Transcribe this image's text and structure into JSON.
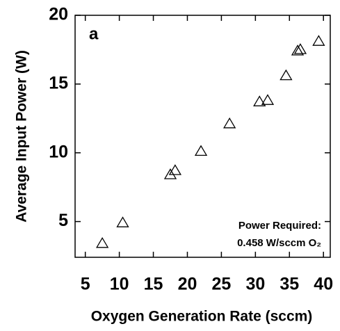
{
  "chart_data": {
    "type": "scatter",
    "panel_label": "a",
    "x_label": "Oxygen Generation Rate (sccm)",
    "y_label": "Average Input Power (W)",
    "annotation": [
      "Power Required:",
      "0.458 W/sccm O₂"
    ],
    "marker": "open-triangle",
    "color": "#000000",
    "x": [
      7.5,
      10.5,
      17.5,
      18.2,
      22.0,
      26.2,
      30.6,
      31.8,
      34.5,
      36.2,
      36.6,
      39.3
    ],
    "values": [
      3.4,
      4.9,
      8.4,
      8.7,
      10.1,
      12.1,
      13.7,
      13.8,
      15.6,
      17.4,
      17.5,
      18.1
    ],
    "xlim": [
      3.5,
      41
    ],
    "ylim": [
      2.4,
      20
    ],
    "xticks": [
      5,
      10,
      15,
      20,
      25,
      30,
      35,
      40
    ],
    "yticks": [
      5,
      10,
      15,
      20
    ]
  }
}
